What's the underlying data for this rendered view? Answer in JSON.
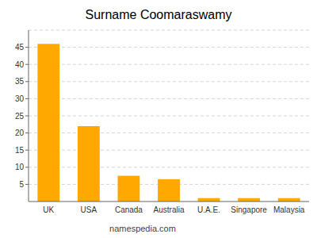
{
  "chart_data": {
    "type": "bar",
    "title": "Surname Coomaraswamy",
    "categories": [
      "UK",
      "USA",
      "Canada",
      "Australia",
      "U.A.E.",
      "Singapore",
      "Malaysia"
    ],
    "values": [
      46,
      22,
      7.5,
      6.5,
      1,
      1,
      1
    ],
    "color": "#FFA800",
    "ylim": [
      0,
      50
    ],
    "yticks": [
      5,
      10,
      15,
      20,
      25,
      30,
      35,
      40,
      45
    ],
    "grid": true,
    "annotations": [
      "namespedia.com"
    ]
  }
}
